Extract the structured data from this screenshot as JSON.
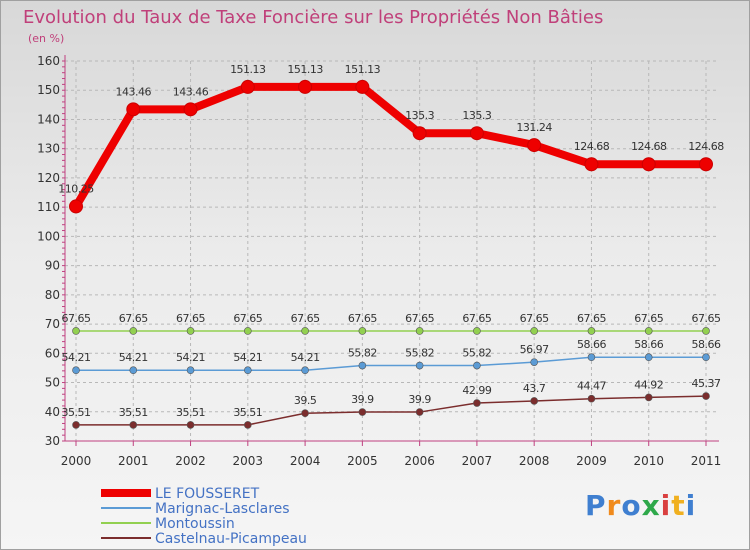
{
  "chart_data": {
    "type": "line",
    "title": "Evolution du Taux de Taxe Foncière sur les Propriétés Non Bâties",
    "subtitle": "(en %)",
    "categories": [
      "2000",
      "2001",
      "2002",
      "2003",
      "2004",
      "2005",
      "2006",
      "2007",
      "2008",
      "2009",
      "2010",
      "2011"
    ],
    "ylim": [
      30,
      160
    ],
    "yticks": [
      30,
      40,
      50,
      60,
      70,
      80,
      90,
      100,
      110,
      120,
      130,
      140,
      150,
      160
    ],
    "grid": true,
    "legend_position": "bottom-left",
    "series": [
      {
        "name": "LE FOUSSERET",
        "color": "#ee0000",
        "values": [
          110.25,
          143.46,
          143.46,
          151.13,
          151.13,
          151.13,
          135.3,
          135.3,
          131.24,
          124.68,
          124.68,
          124.68
        ],
        "labels": [
          "110.25",
          "143.46",
          "143.46",
          "151.13",
          "151.13",
          "151.13",
          "135.3",
          "135.3",
          "131.24",
          "124.68",
          "124.68",
          "124.68"
        ]
      },
      {
        "name": "Marignac-Lasclares",
        "color": "#5b9bd5",
        "values": [
          54.21,
          54.21,
          54.21,
          54.21,
          54.21,
          55.82,
          55.82,
          55.82,
          56.97,
          58.66,
          58.66,
          58.66
        ],
        "labels": [
          "54.21",
          "54.21",
          "54.21",
          "54.21",
          "54.21",
          "55.82",
          "55.82",
          "55.82",
          "56.97",
          "58.66",
          "58.66",
          "58.66"
        ]
      },
      {
        "name": "Montoussin",
        "color": "#92d050",
        "values": [
          67.65,
          67.65,
          67.65,
          67.65,
          67.65,
          67.65,
          67.65,
          67.65,
          67.65,
          67.65,
          67.65,
          67.65
        ],
        "labels": [
          "67.65",
          "67.65",
          "67.65",
          "67.65",
          "67.65",
          "67.65",
          "67.65",
          "67.65",
          "67.65",
          "67.65",
          "67.65",
          "67.65"
        ]
      },
      {
        "name": "Castelnau-Picampeau",
        "color": "#7b2d2d",
        "values": [
          35.51,
          35.51,
          35.51,
          35.51,
          39.5,
          39.9,
          39.9,
          42.99,
          43.7,
          44.47,
          44.92,
          45.37
        ],
        "labels": [
          "35.51",
          "35.51",
          "35.51",
          "35.51",
          "39.5",
          "39.9",
          "39.9",
          "42.99",
          "43.7",
          "44.47",
          "44.92",
          "45.37"
        ]
      }
    ]
  },
  "logo": {
    "letters": [
      "P",
      "r",
      "o",
      "x",
      "i",
      "t",
      "i"
    ],
    "colors": [
      "#3f7fd0",
      "#f08a1c",
      "#3f7fd0",
      "#2ea84a",
      "#d94040",
      "#f0b020",
      "#3f7fd0"
    ]
  }
}
